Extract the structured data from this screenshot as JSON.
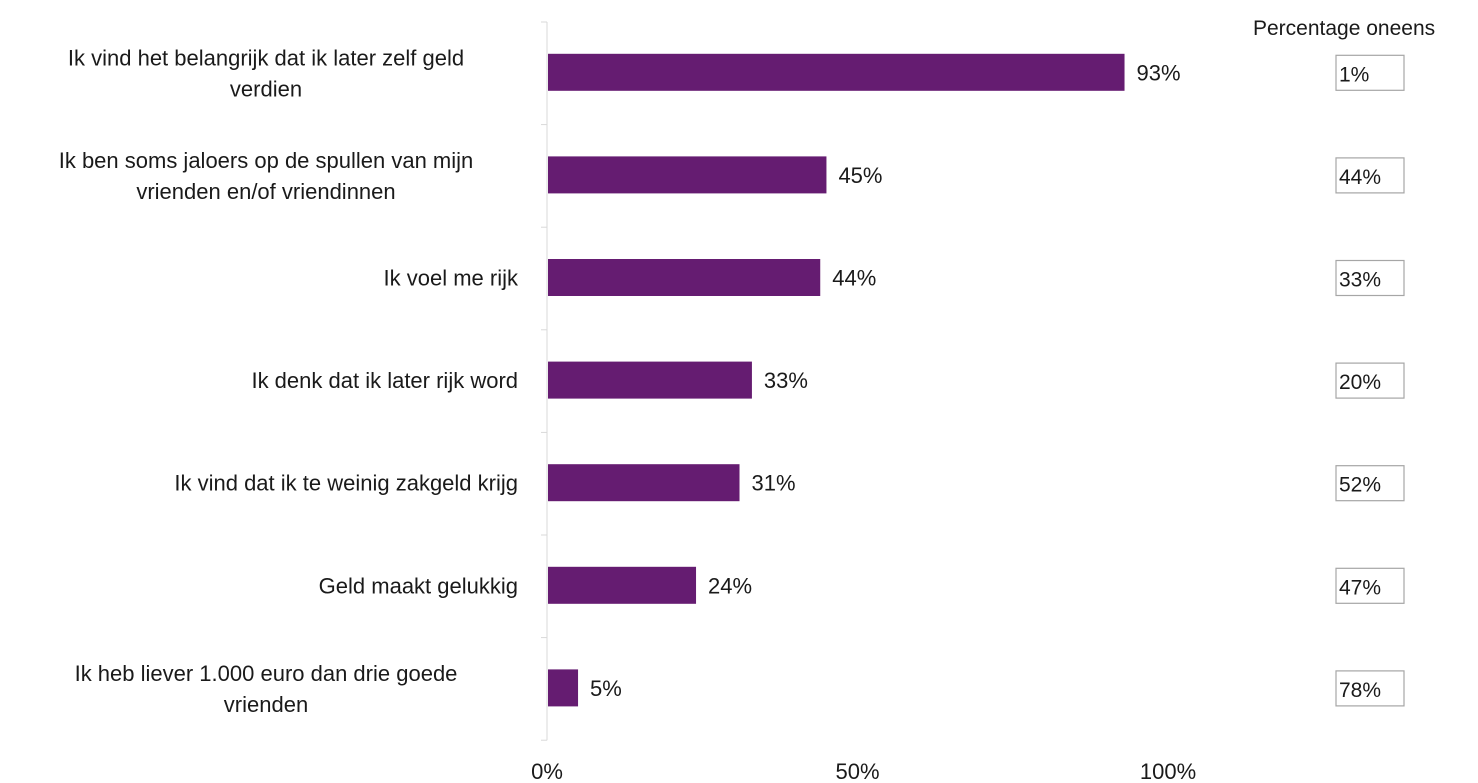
{
  "chart_data": {
    "type": "bar",
    "orientation": "horizontal",
    "categories": [
      "Ik vind het belangrijk dat ik later zelf geld verdien",
      "Ik ben soms jaloers op de spullen van mijn vrienden en/of vriendinnen",
      "Ik voel me rijk",
      "Ik denk dat ik later rijk word",
      "Ik vind dat ik te weinig zakgeld krijg",
      "Geld maakt gelukkig",
      "Ik heb liever 1.000 euro dan drie goede vrienden"
    ],
    "category_lines": [
      [
        "Ik vind het belangrijk dat ik later zelf geld",
        "verdien"
      ],
      [
        "Ik ben soms jaloers op de spullen van mijn",
        "vrienden en/of vriendinnen"
      ],
      [
        "Ik voel me rijk"
      ],
      [
        "Ik denk dat ik later rijk word"
      ],
      [
        "Ik vind dat ik te weinig zakgeld krijg"
      ],
      [
        "Geld maakt gelukkig"
      ],
      [
        "Ik heb liever 1.000 euro dan drie goede",
        "vrienden"
      ]
    ],
    "values": [
      93,
      45,
      44,
      33,
      31,
      24,
      5
    ],
    "value_labels": [
      "93%",
      "45%",
      "44%",
      "33%",
      "31%",
      "24%",
      "5%"
    ],
    "disagree_title": "Percentage oneens",
    "disagree_values": [
      1,
      44,
      33,
      20,
      52,
      47,
      78
    ],
    "disagree_labels": [
      "1%",
      "44%",
      "33%",
      "20%",
      "52%",
      "47%",
      "78%"
    ],
    "xlim": [
      0,
      100
    ],
    "xticks": [
      0,
      50,
      100
    ],
    "xtick_labels": [
      "0%",
      "50%",
      "100%"
    ],
    "title": "",
    "xlabel": "",
    "ylabel": "",
    "grid": false,
    "colors": {
      "bar": "#651c71",
      "axis": "#d9d9d9",
      "box_border": "#a6a6a6",
      "text": "#1a1a1a"
    }
  }
}
